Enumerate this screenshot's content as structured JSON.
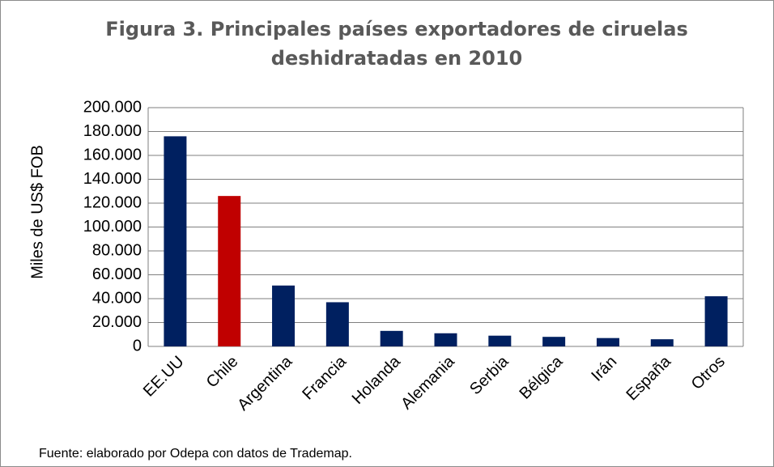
{
  "chart_data": {
    "type": "bar",
    "title": "Figura 3. Principales países exportadores de ciruelas deshidratadas en 2010",
    "y_label": "Miles de US$ FOB",
    "categories": [
      "EE.UU",
      "Chile",
      "Argentina",
      "Francia",
      "Holanda",
      "Alemania",
      "Serbia",
      "Bélgica",
      "Irán",
      "España",
      "Otros"
    ],
    "values": [
      176000,
      126000,
      51000,
      37000,
      13000,
      11000,
      9000,
      8000,
      7000,
      6000,
      42000
    ],
    "colors": [
      "#002060",
      "#c00000",
      "#002060",
      "#002060",
      "#002060",
      "#002060",
      "#002060",
      "#002060",
      "#002060",
      "#002060",
      "#002060"
    ],
    "ylim": [
      0,
      200000
    ],
    "yticks": [
      0,
      {
        "value": 20000,
        "label": "20.000"
      },
      {
        "value": 40000,
        "label": "40.000"
      },
      {
        "value": 60000,
        "label": "60.000"
      },
      {
        "value": 80000,
        "label": "80.000"
      },
      {
        "value": 100000,
        "label": "100.000"
      },
      {
        "value": 120000,
        "label": "120.000"
      },
      {
        "value": 140000,
        "label": "140.000"
      },
      {
        "value": 160000,
        "label": "160.000"
      },
      {
        "value": 180000,
        "label": "180.000"
      },
      {
        "value": 200000,
        "label": "200.000"
      }
    ],
    "grid": true,
    "source": "Fuente: elaborado por Odepa con datos de Trademap."
  }
}
